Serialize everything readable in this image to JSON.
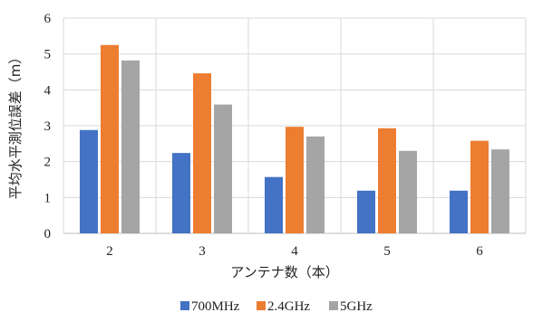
{
  "chart_data": {
    "type": "bar",
    "categories": [
      "2",
      "3",
      "4",
      "5",
      "6"
    ],
    "series": [
      {
        "name": "700MHz",
        "values": [
          2.88,
          2.24,
          1.57,
          1.19,
          1.19
        ],
        "color": "#4472C4"
      },
      {
        "name": "2.4GHz",
        "values": [
          5.25,
          4.46,
          2.97,
          2.93,
          2.58
        ],
        "color": "#ED7D31"
      },
      {
        "name": "5GHz",
        "values": [
          4.82,
          3.59,
          2.7,
          2.3,
          2.34
        ],
        "color": "#A5A5A5"
      }
    ],
    "title": "",
    "xlabel": "アンテナ数（本）",
    "ylabel": "平均水平測位誤差（m）",
    "ylim": [
      0,
      6
    ],
    "yticks": [
      "0",
      "1",
      "2",
      "3",
      "4",
      "5",
      "6"
    ],
    "grid": true,
    "legend_position": "bottom"
  }
}
